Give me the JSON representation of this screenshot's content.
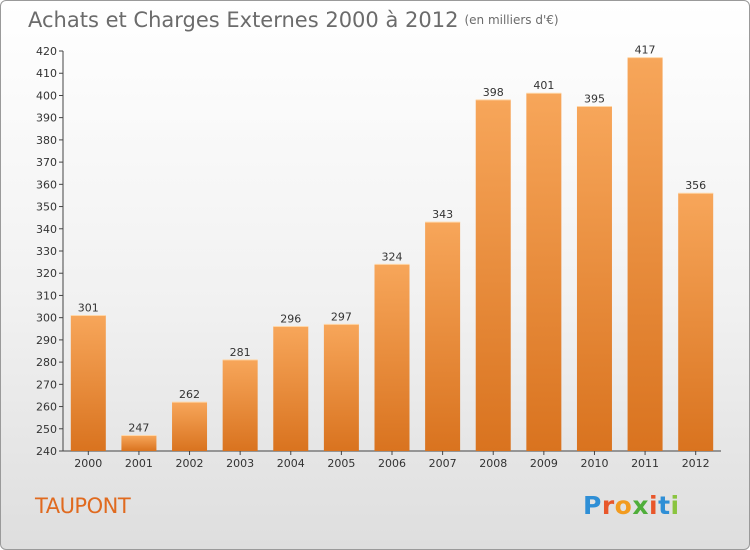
{
  "title": "Achats et Charges Externes 2000 à 2012",
  "unit_note": "(en milliers d'€)",
  "commune": "TAUPONT",
  "logo": {
    "letters": [
      "P",
      "r",
      "o",
      "x",
      "i",
      "t",
      "i"
    ],
    "colors": [
      "#2f8fd6",
      "#e8562a",
      "#f29b1f",
      "#4fae3a",
      "#e8562a",
      "#2f8fd6",
      "#8ac43f"
    ]
  },
  "colors": {
    "bar_top": "#f7a65a",
    "bar_bottom": "#d9731f",
    "title": "#6b6b6b",
    "commune": "#e06a1f"
  },
  "chart_data": {
    "type": "bar",
    "title": "Achats et Charges Externes 2000 à 2012",
    "subtitle": "(en milliers d'€)",
    "categories": [
      "2000",
      "2001",
      "2002",
      "2003",
      "2004",
      "2005",
      "2006",
      "2007",
      "2008",
      "2009",
      "2010",
      "2011",
      "2012"
    ],
    "values": [
      301,
      247,
      262,
      281,
      296,
      297,
      324,
      343,
      398,
      401,
      395,
      417,
      356
    ],
    "ylim": [
      240,
      420
    ],
    "yticks": [
      240,
      250,
      260,
      270,
      280,
      290,
      300,
      310,
      320,
      330,
      340,
      350,
      360,
      370,
      380,
      390,
      400,
      410,
      420
    ],
    "grid": false,
    "legend": "none"
  }
}
